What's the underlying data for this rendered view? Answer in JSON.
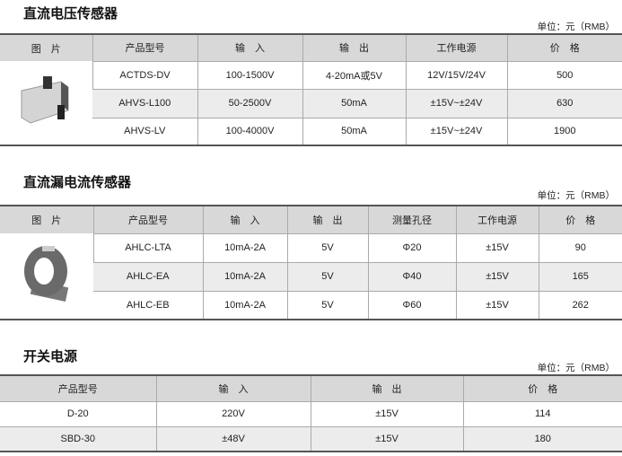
{
  "sections": [
    {
      "title": "直流电压传感器",
      "unit": "单位：元（RMB）",
      "headers": [
        "图　片",
        "产品型号",
        "输　入",
        "输　出",
        "工作电源",
        "价　格"
      ],
      "rows": [
        [
          "ACTDS-DV",
          "100-1500V",
          "4-20mA或5V",
          "12V/15V/24V",
          "500"
        ],
        [
          "AHVS-L100",
          "50-2500V",
          "50mA",
          "±15V~±24V",
          "630"
        ],
        [
          "AHVS-LV",
          "100-4000V",
          "50mA",
          "±15V~±24V",
          "1900"
        ]
      ],
      "image_icon": "voltage-sensor-module-image"
    },
    {
      "title": "直流漏电流传感器",
      "unit": "单位：元（RMB）",
      "headers": [
        "图　片",
        "产品型号",
        "输　入",
        "输　出",
        "测量孔径",
        "工作电源",
        "价　格"
      ],
      "rows": [
        [
          "AHLC-LTA",
          "10mA-2A",
          "5V",
          "Φ20",
          "±15V",
          "90"
        ],
        [
          "AHLC-EA",
          "10mA-2A",
          "5V",
          "Φ40",
          "±15V",
          "165"
        ],
        [
          "AHLC-EB",
          "10mA-2A",
          "5V",
          "Φ60",
          "±15V",
          "262"
        ]
      ],
      "image_icon": "ring-current-sensor-image"
    },
    {
      "title": "开关电源",
      "unit": "单位：元（RMB）",
      "headers": [
        "产品型号",
        "输　入",
        "输　出",
        "价　格"
      ],
      "rows": [
        [
          "D-20",
          "220V",
          "±15V",
          "114"
        ],
        [
          "SBD-30",
          "±48V",
          "±15V",
          "180"
        ]
      ]
    }
  ]
}
